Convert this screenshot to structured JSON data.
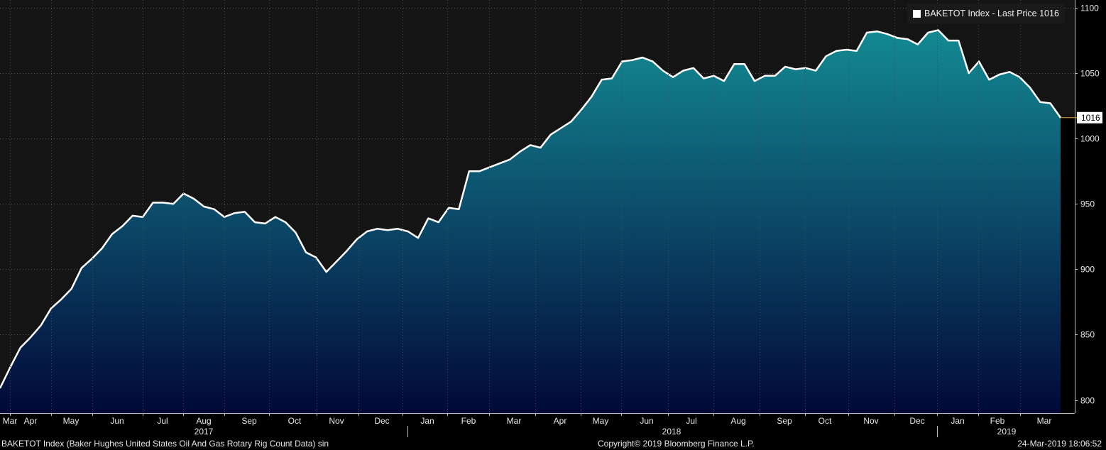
{
  "chart_data": {
    "type": "area",
    "legend": {
      "label": "BAKETOT Index - Last Price 1016",
      "placement": "top-right"
    },
    "last_value_label": "1016",
    "y_ticks": [
      800,
      850,
      900,
      950,
      1000,
      1050,
      1100
    ],
    "ylim": [
      790,
      1106
    ],
    "x_ticks": [
      "Mar",
      "Apr",
      "May",
      "Jun",
      "Jul",
      "Aug",
      "Sep",
      "Oct",
      "Nov",
      "Dec",
      "Jan",
      "Feb",
      "Mar",
      "Apr",
      "May",
      "Jun",
      "Jul",
      "Aug",
      "Sep",
      "Oct",
      "Nov",
      "Dec",
      "Jan",
      "Feb",
      "Mar"
    ],
    "years": [
      "2017",
      "2018",
      "2019"
    ],
    "grid": true,
    "series": [
      {
        "values": [
          809,
          825,
          840,
          848,
          857,
          870,
          877,
          885,
          901,
          908,
          916,
          927,
          933,
          941,
          940,
          951,
          951,
          950,
          958,
          954,
          948,
          946,
          940,
          943,
          944,
          936,
          935,
          940,
          936,
          928,
          913,
          909,
          898,
          906,
          914,
          923,
          929,
          931,
          930,
          931,
          929,
          924,
          939,
          936,
          947,
          946,
          975,
          975,
          978,
          981,
          984,
          990,
          995,
          993,
          1003,
          1008,
          1013,
          1022,
          1032,
          1045,
          1046,
          1059,
          1060,
          1062,
          1059,
          1052,
          1047,
          1052,
          1054,
          1046,
          1048,
          1044,
          1057,
          1057,
          1044,
          1048,
          1048,
          1055,
          1053,
          1054,
          1052,
          1063,
          1067,
          1068,
          1067,
          1081,
          1082,
          1080,
          1077,
          1076,
          1072,
          1081,
          1083,
          1075,
          1075,
          1050,
          1059,
          1045,
          1049,
          1051,
          1047,
          1039,
          1028,
          1027,
          1016
        ]
      }
    ]
  },
  "footer": {
    "left": "BAKETOT Index (Baker Hughes United States Oil And Gas Rotary Rig Count Data) sin",
    "center": "Copyright© 2019 Bloomberg Finance L.P.",
    "right": "24-Mar-2019 18:06:52"
  }
}
